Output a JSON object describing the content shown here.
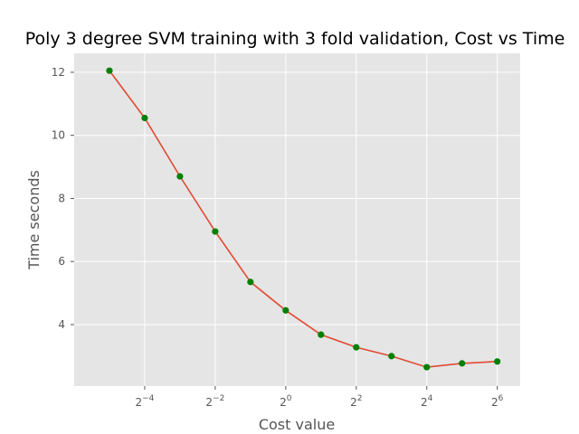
{
  "chart_data": {
    "type": "line",
    "title": "Poly 3 degree SVM training with 3 fold validation, Cost vs Time",
    "xlabel": "Cost value",
    "ylabel": "Time seconds",
    "x_scale": "log2",
    "x_exponents": [
      -5,
      -4,
      -3,
      -2,
      -1,
      0,
      1,
      2,
      3,
      4,
      5,
      6
    ],
    "x": [
      0.03125,
      0.0625,
      0.125,
      0.25,
      0.5,
      1,
      2,
      4,
      8,
      16,
      32,
      64
    ],
    "y": [
      12.05,
      10.55,
      8.7,
      6.95,
      5.35,
      4.45,
      3.68,
      3.28,
      3.0,
      2.65,
      2.77,
      2.83
    ],
    "x_ticks": [
      {
        "base": "2",
        "exp": "−4",
        "exp_value": -4
      },
      {
        "base": "2",
        "exp": "−2",
        "exp_value": -2
      },
      {
        "base": "2",
        "exp": "0",
        "exp_value": 0
      },
      {
        "base": "2",
        "exp": "2",
        "exp_value": 2
      },
      {
        "base": "2",
        "exp": "4",
        "exp_value": 4
      },
      {
        "base": "2",
        "exp": "6",
        "exp_value": 6
      }
    ],
    "y_ticks": [
      4,
      6,
      8,
      10,
      12
    ],
    "xlim_exp": [
      -6,
      6.65
    ],
    "ylim": [
      2.05,
      12.6
    ],
    "grid": true,
    "colors": {
      "background": "#e5e5e5",
      "grid": "#ffffff",
      "line": "#e24a33",
      "marker": "#008000"
    }
  }
}
